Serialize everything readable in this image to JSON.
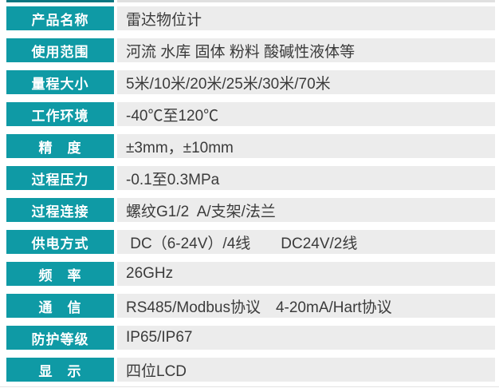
{
  "colors": {
    "label_bg": "#0f9aa5",
    "label_text": "#ffffff",
    "value_bg": "#ececec",
    "value_text": "#3b3b3b"
  },
  "table": {
    "rows": [
      {
        "label": "产品名称",
        "value": "雷达物位计"
      },
      {
        "label": "使用范围",
        "value": "河流 水库 固体 粉料 酸碱性液体等"
      },
      {
        "label": "量程大小",
        "value": "5米/10米/20米/25米/30米/70米"
      },
      {
        "label": "工作环境",
        "value": "-40℃至120℃"
      },
      {
        "label": "精　度",
        "value": "±3mm，±10mm"
      },
      {
        "label": "过程压力",
        "value": "-0.1至0.3MPa"
      },
      {
        "label": "过程连接",
        "value": "螺纹G1/2  A/支架/法兰"
      },
      {
        "label": "供电方式",
        "value": " DC（6-24V）/4线　　DC24V/2线"
      },
      {
        "label": "频　率",
        "value": "26GHz"
      },
      {
        "label": "通　信",
        "value": "RS485/Modbus协议　4-20mA/Hart协议"
      },
      {
        "label": "防护等级",
        "value": "IP65/IP67"
      },
      {
        "label": "显　示",
        "value": "四位LCD"
      }
    ]
  }
}
